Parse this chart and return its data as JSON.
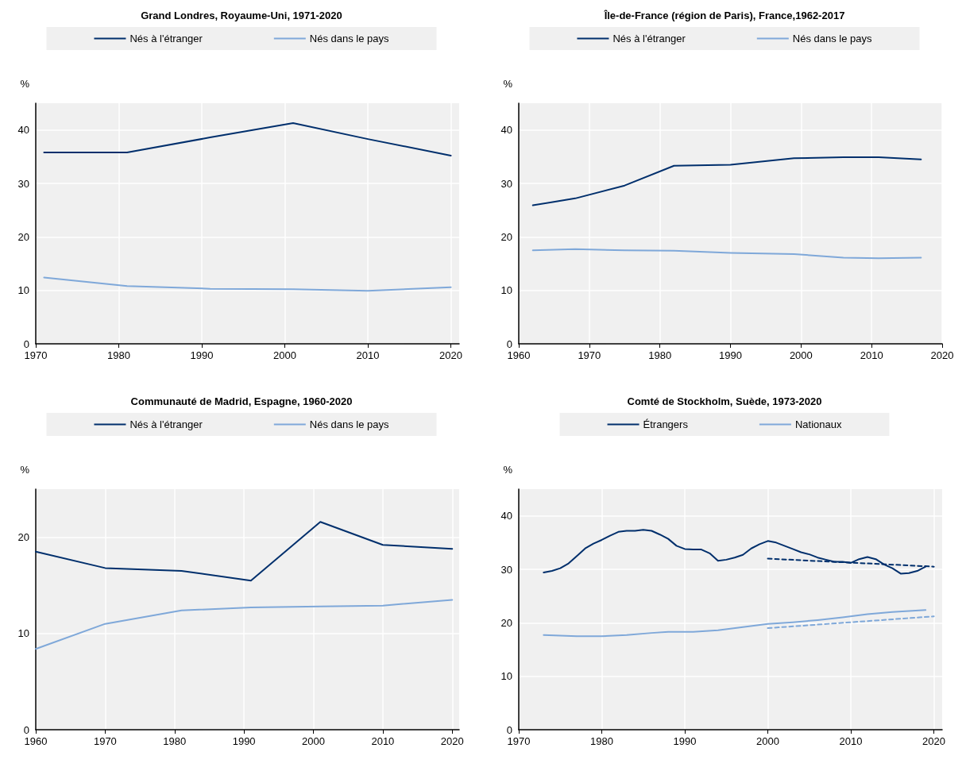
{
  "chart_data": [
    {
      "type": "line",
      "title": "Grand Londres, Royaume-Uni, 1971-2020",
      "ylabel": "%",
      "xlim": [
        1970,
        2021
      ],
      "xticks": [
        1970,
        1980,
        1990,
        2000,
        2010,
        2020
      ],
      "ylim": [
        0,
        45
      ],
      "yticks": [
        0,
        10,
        20,
        30,
        40
      ],
      "grid": true,
      "legend": "top",
      "marker": "none",
      "line_style": "solid",
      "series": [
        {
          "name": "Nés à l'étranger",
          "color": "#002f6c",
          "x": [
            1971,
            1981,
            1991,
            2001,
            2010,
            2020
          ],
          "values": [
            35.8,
            35.8,
            38.6,
            41.3,
            38.3,
            35.2
          ]
        },
        {
          "name": "Nés dans le pays",
          "color": "#7fa8d9",
          "x": [
            1971,
            1981,
            1991,
            2001,
            2010,
            2020
          ],
          "values": [
            12.4,
            10.8,
            10.3,
            10.2,
            9.9,
            10.6
          ]
        }
      ]
    },
    {
      "type": "line",
      "title": "Île-de-France (région de Paris), France,1962-2017",
      "ylabel": "%",
      "xlim": [
        1960,
        2020
      ],
      "xticks": [
        1960,
        1970,
        1980,
        1990,
        2000,
        2010,
        2020
      ],
      "ylim": [
        0,
        45
      ],
      "yticks": [
        0,
        10,
        20,
        30,
        40
      ],
      "grid": true,
      "legend": "top",
      "marker": "none",
      "line_style": "solid",
      "series": [
        {
          "name": "Nés à l'étranger",
          "color": "#002f6c",
          "x": [
            1962,
            1968,
            1975,
            1982,
            1990,
            1999,
            2006,
            2011,
            2017
          ],
          "values": [
            25.9,
            27.2,
            29.6,
            33.3,
            33.5,
            34.7,
            34.9,
            34.9,
            34.5
          ]
        },
        {
          "name": "Nés dans le pays",
          "color": "#7fa8d9",
          "x": [
            1962,
            1968,
            1975,
            1982,
            1990,
            1999,
            2006,
            2011,
            2017
          ],
          "values": [
            17.5,
            17.7,
            17.5,
            17.4,
            17.0,
            16.8,
            16.1,
            16.0,
            16.1
          ]
        }
      ]
    },
    {
      "type": "line",
      "title": "Communauté de Madrid, Espagne, 1960-2020",
      "ylabel": "%",
      "xlim": [
        1960,
        2021
      ],
      "xticks": [
        1960,
        1970,
        1980,
        1990,
        2000,
        2010,
        2020
      ],
      "ylim": [
        0,
        25
      ],
      "yticks": [
        0,
        10,
        20
      ],
      "grid": true,
      "legend": "top",
      "marker": "none",
      "line_style": "solid",
      "series": [
        {
          "name": "Nés à l'étranger",
          "color": "#002f6c",
          "x": [
            1960,
            1970,
            1981,
            1991,
            2001,
            2010,
            2020
          ],
          "values": [
            18.5,
            16.8,
            16.5,
            15.5,
            21.6,
            19.2,
            18.8
          ]
        },
        {
          "name": "Nés dans le pays",
          "color": "#7fa8d9",
          "x": [
            1960,
            1970,
            1981,
            1991,
            2001,
            2010,
            2020
          ],
          "values": [
            8.4,
            11.0,
            12.4,
            12.7,
            12.8,
            12.9,
            13.5
          ]
        }
      ]
    },
    {
      "type": "line",
      "title": "Comté de Stockholm, Suède, 1973-2020",
      "ylabel": "%",
      "xlim": [
        1970,
        2021
      ],
      "xticks": [
        1970,
        1980,
        1990,
        2000,
        2010,
        2020
      ],
      "ylim": [
        0,
        45
      ],
      "yticks": [
        0,
        10,
        20,
        30,
        40
      ],
      "grid": true,
      "legend": "top",
      "marker": "none",
      "line_style": "solid",
      "series": [
        {
          "name": "Étrangers",
          "color": "#002f6c",
          "x": [
            1973,
            1974,
            1975,
            1976,
            1977,
            1978,
            1979,
            1980,
            1981,
            1982,
            1983,
            1984,
            1985,
            1986,
            1987,
            1988,
            1989,
            1990,
            1991,
            1992,
            1993,
            1994,
            1995,
            1996,
            1997,
            1998,
            1999,
            2000,
            2001,
            2002,
            2003,
            2004,
            2005,
            2006,
            2007,
            2008,
            2009,
            2010,
            2011,
            2012,
            2013,
            2014,
            2015,
            2016,
            2017,
            2018,
            2019
          ],
          "values": [
            29.4,
            29.7,
            30.2,
            31.1,
            32.5,
            33.9,
            34.8,
            35.5,
            36.3,
            37.0,
            37.2,
            37.2,
            37.4,
            37.2,
            36.5,
            35.7,
            34.4,
            33.8,
            33.7,
            33.7,
            33.0,
            31.6,
            31.8,
            32.2,
            32.7,
            33.9,
            34.7,
            35.3,
            35.0,
            34.4,
            33.8,
            33.2,
            32.8,
            32.2,
            31.8,
            31.4,
            31.4,
            31.2,
            31.9,
            32.3,
            31.9,
            30.9,
            30.2,
            29.2,
            29.3,
            29.7,
            30.5
          ]
        },
        {
          "name": "Nationaux",
          "color": "#7fa8d9",
          "x": [
            1973,
            1975,
            1977,
            1980,
            1983,
            1986,
            1988,
            1991,
            1994,
            1997,
            2000,
            2003,
            2006,
            2009,
            2012,
            2015,
            2019
          ],
          "values": [
            17.7,
            17.6,
            17.5,
            17.5,
            17.7,
            18.1,
            18.3,
            18.3,
            18.6,
            19.2,
            19.8,
            20.1,
            20.5,
            21.0,
            21.6,
            22.0,
            22.4
          ]
        },
        {
          "type": "line",
          "line_style": "dashed",
          "color": "#002f6c",
          "x": [
            2000,
            2020
          ],
          "values": [
            32.0,
            30.5
          ]
        },
        {
          "type": "line",
          "line_style": "dashed",
          "color": "#7fa8d9",
          "x": [
            2000,
            2020
          ],
          "values": [
            19.0,
            21.2
          ]
        }
      ]
    }
  ]
}
